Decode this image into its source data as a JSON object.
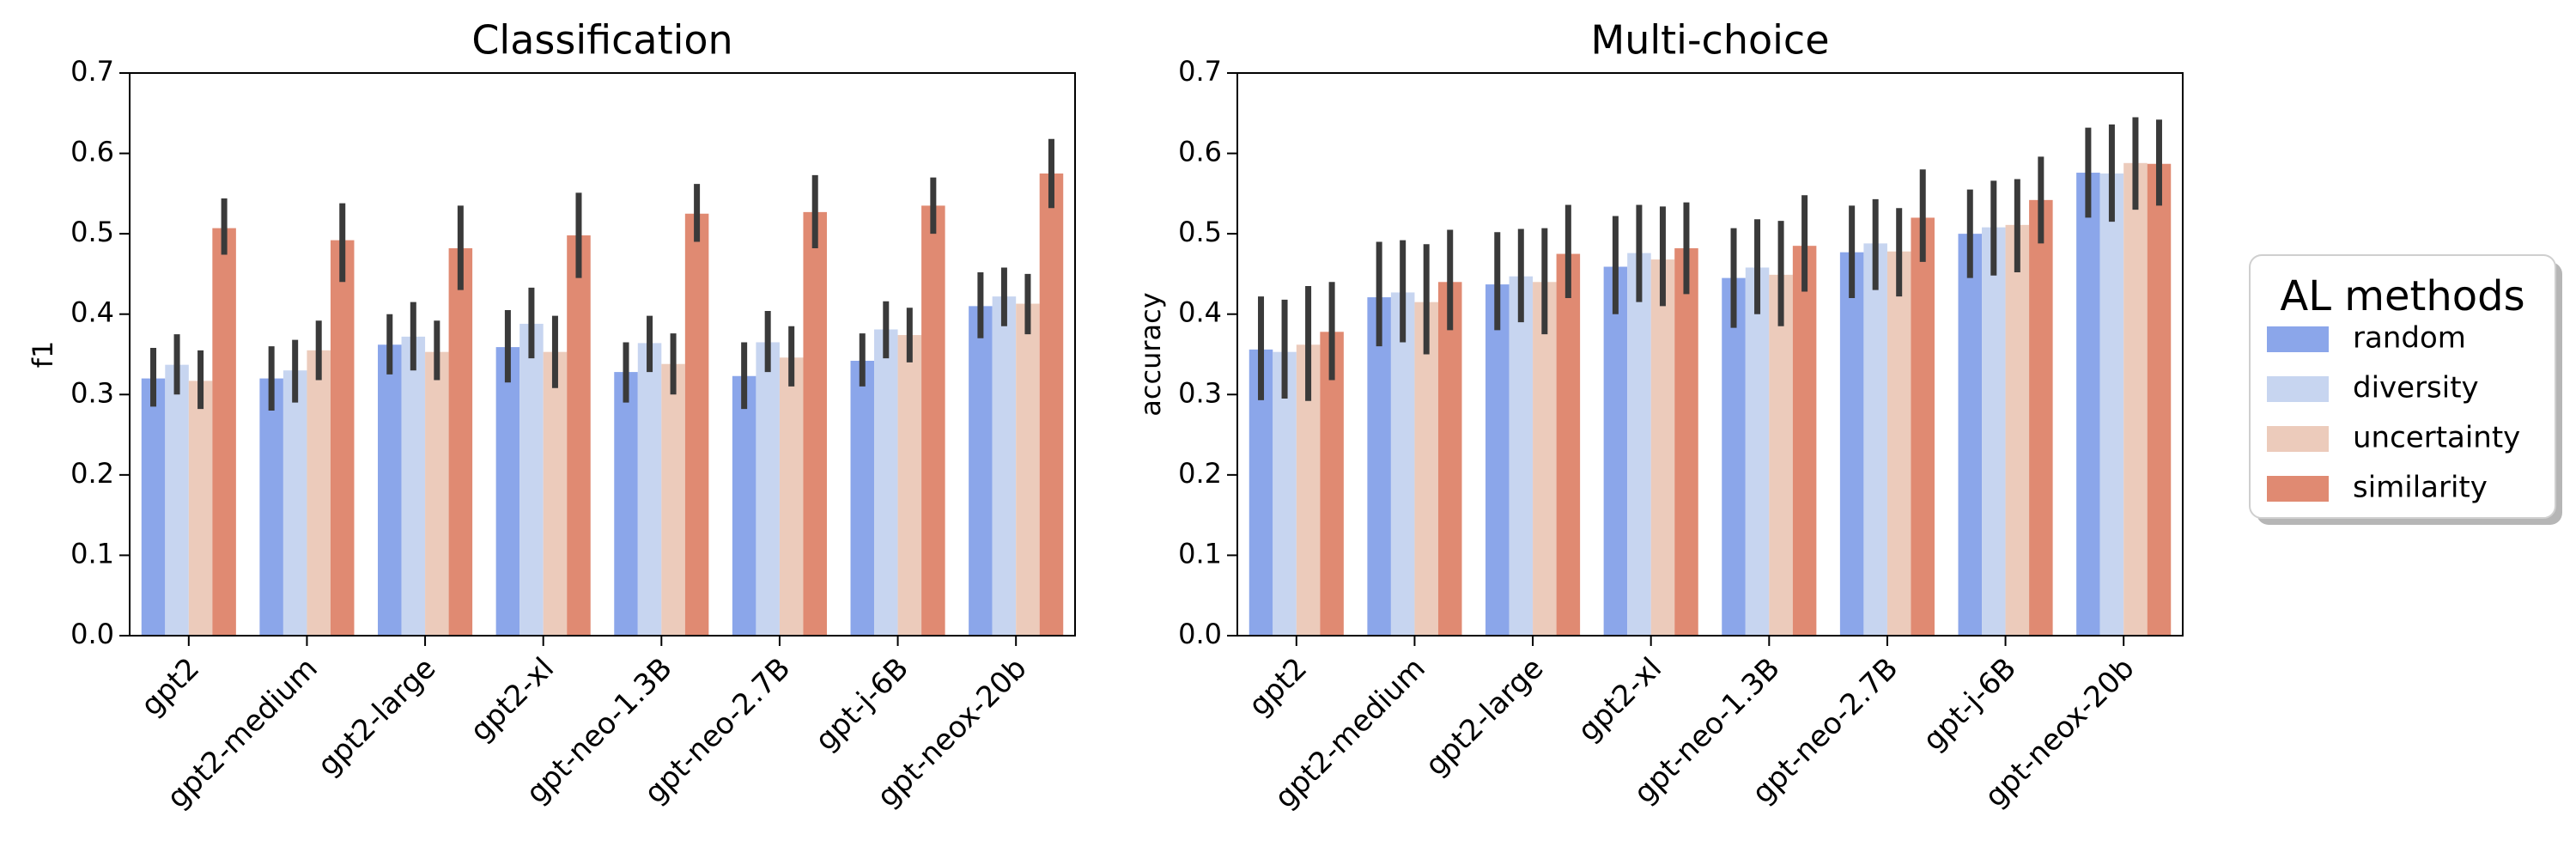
{
  "colors": {
    "random": "#8ba6ea",
    "diversity": "#c7d5f0",
    "uncertainty": "#eccbbb",
    "similarity": "#e08a72",
    "errorbar": "#3a3a3a"
  },
  "legend": {
    "title": "AL methods",
    "entries": [
      "random",
      "diversity",
      "uncertainty",
      "similarity"
    ]
  },
  "chart_data": [
    {
      "type": "bar",
      "title": "Classification",
      "xlabel": "",
      "ylabel": "f1",
      "ylim": [
        0,
        0.7
      ],
      "yticks": [
        "0.0",
        "0.1",
        "0.2",
        "0.3",
        "0.4",
        "0.5",
        "0.6",
        "0.7"
      ],
      "categories": [
        "gpt2",
        "gpt2-medium",
        "gpt2-large",
        "gpt2-xl",
        "gpt-neo-1.3B",
        "gpt-neo-2.7B",
        "gpt-j-6B",
        "gpt-neox-20b"
      ],
      "series": [
        {
          "name": "random",
          "values": [
            0.32,
            0.32,
            0.362,
            0.359,
            0.328,
            0.323,
            0.342,
            0.41
          ],
          "err_low": [
            0.285,
            0.28,
            0.325,
            0.315,
            0.29,
            0.282,
            0.31,
            0.37
          ],
          "err_high": [
            0.358,
            0.36,
            0.4,
            0.405,
            0.365,
            0.365,
            0.376,
            0.452
          ]
        },
        {
          "name": "diversity",
          "values": [
            0.337,
            0.33,
            0.372,
            0.388,
            0.364,
            0.365,
            0.381,
            0.422
          ],
          "err_low": [
            0.3,
            0.29,
            0.33,
            0.345,
            0.328,
            0.328,
            0.345,
            0.385
          ],
          "err_high": [
            0.375,
            0.368,
            0.415,
            0.433,
            0.398,
            0.404,
            0.416,
            0.458
          ]
        },
        {
          "name": "uncertainty",
          "values": [
            0.317,
            0.355,
            0.353,
            0.353,
            0.338,
            0.346,
            0.374,
            0.413
          ],
          "err_low": [
            0.282,
            0.318,
            0.318,
            0.308,
            0.3,
            0.31,
            0.34,
            0.375
          ],
          "err_high": [
            0.355,
            0.392,
            0.392,
            0.398,
            0.376,
            0.385,
            0.408,
            0.45
          ]
        },
        {
          "name": "similarity",
          "values": [
            0.507,
            0.492,
            0.482,
            0.498,
            0.525,
            0.527,
            0.535,
            0.575
          ],
          "err_low": [
            0.474,
            0.44,
            0.43,
            0.445,
            0.49,
            0.482,
            0.5,
            0.532
          ],
          "err_high": [
            0.544,
            0.538,
            0.535,
            0.551,
            0.562,
            0.573,
            0.57,
            0.618
          ]
        }
      ]
    },
    {
      "type": "bar",
      "title": "Multi-choice",
      "xlabel": "",
      "ylabel": "accuracy",
      "ylim": [
        0,
        0.7
      ],
      "yticks": [
        "0.0",
        "0.1",
        "0.2",
        "0.3",
        "0.4",
        "0.5",
        "0.6",
        "0.7"
      ],
      "categories": [
        "gpt2",
        "gpt2-medium",
        "gpt2-large",
        "gpt2-xl",
        "gpt-neo-1.3B",
        "gpt-neo-2.7B",
        "gpt-j-6B",
        "gpt-neox-20b"
      ],
      "series": [
        {
          "name": "random",
          "values": [
            0.356,
            0.421,
            0.437,
            0.459,
            0.445,
            0.477,
            0.5,
            0.576
          ],
          "err_low": [
            0.293,
            0.36,
            0.38,
            0.4,
            0.383,
            0.42,
            0.445,
            0.52
          ],
          "err_high": [
            0.422,
            0.49,
            0.502,
            0.522,
            0.507,
            0.535,
            0.555,
            0.632
          ]
        },
        {
          "name": "diversity",
          "values": [
            0.353,
            0.427,
            0.447,
            0.476,
            0.458,
            0.488,
            0.508,
            0.575
          ],
          "err_low": [
            0.295,
            0.365,
            0.39,
            0.415,
            0.4,
            0.43,
            0.448,
            0.515
          ],
          "err_high": [
            0.418,
            0.492,
            0.506,
            0.536,
            0.518,
            0.543,
            0.566,
            0.636
          ]
        },
        {
          "name": "uncertainty",
          "values": [
            0.362,
            0.415,
            0.44,
            0.468,
            0.449,
            0.478,
            0.511,
            0.588
          ],
          "err_low": [
            0.292,
            0.35,
            0.375,
            0.41,
            0.385,
            0.422,
            0.452,
            0.53
          ],
          "err_high": [
            0.435,
            0.487,
            0.507,
            0.534,
            0.516,
            0.532,
            0.568,
            0.645
          ]
        },
        {
          "name": "similarity",
          "values": [
            0.378,
            0.44,
            0.475,
            0.482,
            0.485,
            0.52,
            0.542,
            0.587
          ],
          "err_low": [
            0.318,
            0.38,
            0.42,
            0.425,
            0.428,
            0.465,
            0.488,
            0.535
          ],
          "err_high": [
            0.44,
            0.505,
            0.536,
            0.539,
            0.548,
            0.58,
            0.596,
            0.642
          ]
        }
      ]
    }
  ]
}
